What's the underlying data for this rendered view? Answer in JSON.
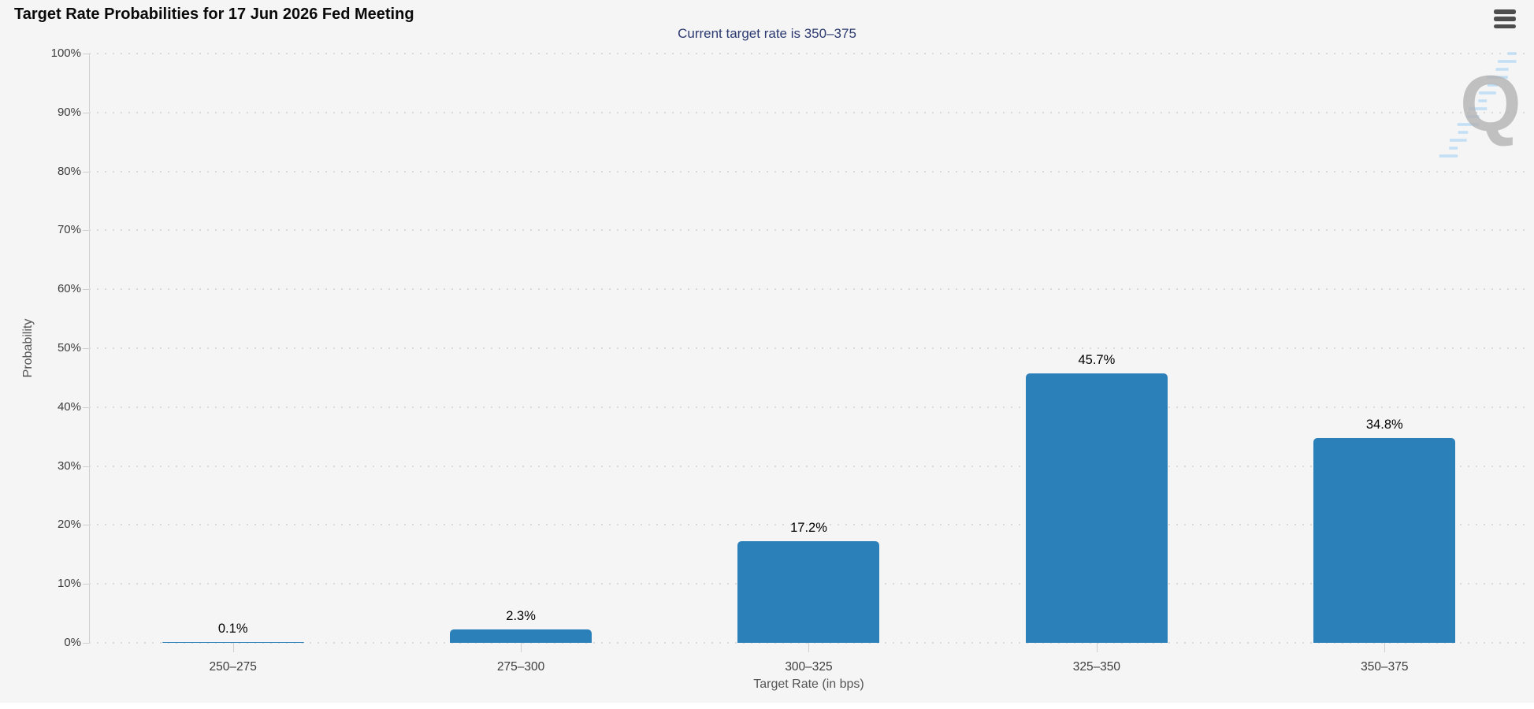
{
  "header": {
    "title": "Target Rate Probabilities for 17 Jun 2026 Fed Meeting",
    "subtitle": "Current target rate is 350–375"
  },
  "menu": {
    "icon": "hamburger-icon"
  },
  "watermark": {
    "letter": "Q"
  },
  "chart_data": {
    "type": "bar",
    "title": "Target Rate Probabilities for 17 Jun 2026 Fed Meeting",
    "subtitle": "Current target rate is 350–375",
    "categories": [
      "250–275",
      "275–300",
      "300–325",
      "325–350",
      "350–375"
    ],
    "values": [
      0.1,
      2.3,
      17.2,
      45.7,
      34.8
    ],
    "value_labels": [
      "0.1%",
      "2.3%",
      "17.2%",
      "45.7%",
      "34.8%"
    ],
    "xlabel": "Target Rate (in bps)",
    "ylabel": "Probability",
    "ylim": [
      0,
      100
    ],
    "y_tick_step": 10,
    "y_tick_labels": [
      "0%",
      "10%",
      "20%",
      "30%",
      "40%",
      "50%",
      "60%",
      "70%",
      "80%",
      "90%",
      "100%"
    ],
    "grid": "horizontal-dotted",
    "legend": "none",
    "bar_color": "#2c80ba"
  },
  "colors": {
    "background": "#f5f5f5",
    "bar": "#2c80ba",
    "subtitle": "#2c3a70",
    "grid": "#d9d9d9",
    "axis": "#cfcfcf",
    "tick_text": "#3c3c3c",
    "watermark_q": "#b3b3b3",
    "watermark_dash": "#badcf5"
  }
}
